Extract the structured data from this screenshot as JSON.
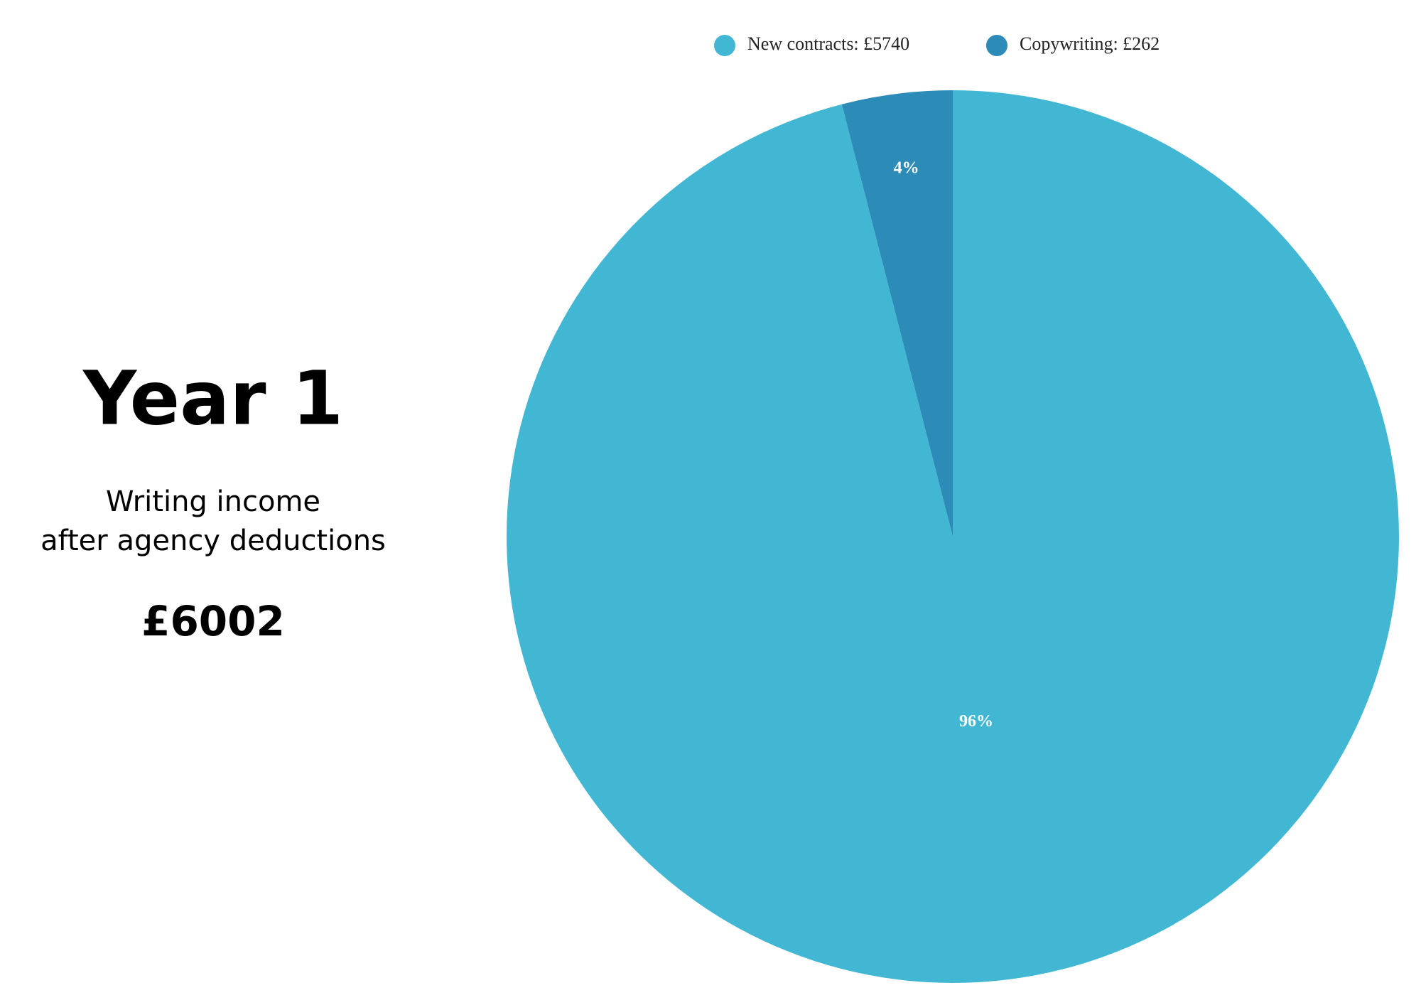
{
  "chart_data": {
    "type": "pie",
    "title": "Year 1",
    "subtitle": [
      "Writing income",
      "after agency deductions"
    ],
    "total_label": "£6002",
    "categories": [
      "New contracts: £5740",
      "Copywriting: £262"
    ],
    "values": [
      96,
      4
    ],
    "value_labels": [
      "96%",
      "4%"
    ],
    "colors": [
      "#42b7d4",
      "#2d8bb8"
    ],
    "start": "top",
    "direction": "clockwise"
  }
}
